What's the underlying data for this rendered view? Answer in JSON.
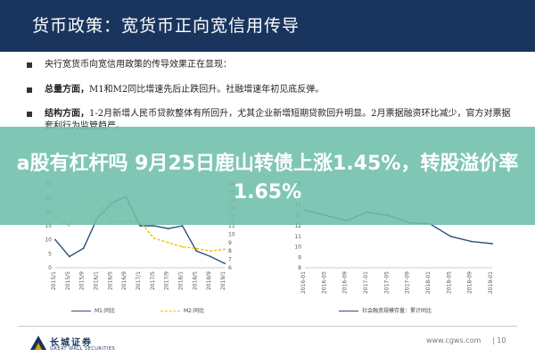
{
  "slide": {
    "title": "货币政策：宽货币正向宽信用传导",
    "bullets": [
      {
        "bold": "",
        "text": "央行宽货币向宽信用政策的传导效果正在显现："
      },
      {
        "bold": "总量方面，",
        "text": "M1和M2同比增速先后止跌回升。社融增速年初见底反弹。"
      },
      {
        "bold": "结构方面，",
        "text": "1-2月新增人民币贷款整体有所回升，尤其企业新增短期贷款回升明显。2月票据融资环比减少，官方对票据套利行为监管趋严。"
      }
    ]
  },
  "banner": {
    "text": "a股有杠杆吗 9月25日鹿山转债上涨1.45%，转股溢价率1.65%"
  },
  "footer": {
    "logo_cn": "长城证券",
    "logo_en": "GREAT WALL SECURITIES",
    "url": "www.cgws.com",
    "page": "| 10"
  },
  "colors": {
    "header": "#19355e",
    "banner": "#6ebeaa",
    "m1": "#2f4f7f",
    "m2": "#f0c000",
    "social": "#2f4f7f"
  },
  "chart_data": [
    {
      "type": "line",
      "title": "",
      "x": [
        "2015/1",
        "2015/5",
        "2015/9",
        "2016/1",
        "2016/5",
        "2016/9",
        "2017/1",
        "2017/5",
        "2017/9",
        "2018/1",
        "2018/5",
        "2018/9",
        "2019/1"
      ],
      "series": [
        {
          "name": "M1:同比",
          "axis": "left",
          "values": [
            10,
            4,
            7,
            18,
            23,
            25.5,
            15,
            15,
            14,
            15,
            6,
            4,
            1.5
          ]
        },
        {
          "name": "M2:同比",
          "axis": "right",
          "values": [
            12,
            11,
            13,
            14,
            11.5,
            11.5,
            11.5,
            9.5,
            9,
            8.5,
            8.3,
            8,
            8.2
          ]
        }
      ],
      "left_ticks": [
        "30",
        "25",
        "20",
        "15",
        "10",
        "5",
        "0"
      ],
      "right_ticks": [
        "16",
        "15",
        "14",
        "13",
        "12",
        "11",
        "10",
        "9",
        "8",
        "7",
        "6"
      ],
      "ylim_left": [
        0,
        30
      ],
      "ylim_right": [
        6,
        16
      ],
      "grid": false,
      "legend": "bottom"
    },
    {
      "type": "line",
      "title": "",
      "x": [
        "2016-01",
        "2016-05",
        "2016-09",
        "2017-01",
        "2017-05",
        "2017-09",
        "2018-01",
        "2018-05",
        "2018-09",
        "2019-01"
      ],
      "series": [
        {
          "name": "社会融资规模存量：累计同比",
          "axis": "left",
          "values": [
            13.5,
            13,
            12.5,
            13.3,
            13,
            12.3,
            12.2,
            11,
            10.5,
            10.3
          ]
        }
      ],
      "left_ticks": [
        "16",
        "15",
        "14",
        "13",
        "12",
        "11",
        "10",
        "9",
        "8"
      ],
      "ylim_left": [
        8,
        16
      ],
      "grid": false,
      "legend": "bottom"
    }
  ]
}
